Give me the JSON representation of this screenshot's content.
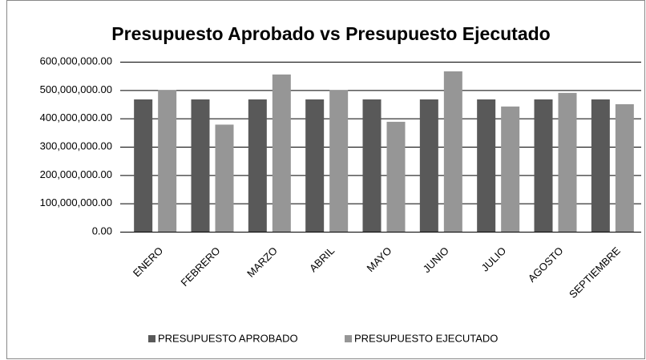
{
  "chart_data": {
    "type": "bar",
    "title": "Presupuesto Aprobado vs Presupuesto Ejecutado",
    "categories": [
      "ENERO",
      "FEBRERO",
      "MARZO",
      "ABRIL",
      "MAYO",
      "JUNIO",
      "JULIO",
      "AGOSTO",
      "SEPTIEMBRE"
    ],
    "series": [
      {
        "name": "PRESUPUESTO APROBADO",
        "color": "#595959",
        "values": [
          467000000,
          467000000,
          467000000,
          467000000,
          467000000,
          467000000,
          467000000,
          467000000,
          467000000
        ]
      },
      {
        "name": "PRESUPUESTO EJECUTADO",
        "color": "#969696",
        "values": [
          500000000,
          378000000,
          555000000,
          500000000,
          388000000,
          566000000,
          442000000,
          490000000,
          450000000
        ]
      }
    ],
    "ylim": [
      0,
      600000000
    ],
    "yticks": [
      {
        "value": 0,
        "label": "0.00"
      },
      {
        "value": 100000000,
        "label": "100,000,000.00"
      },
      {
        "value": 200000000,
        "label": "200,000,000.00"
      },
      {
        "value": 300000000,
        "label": "300,000,000.00"
      },
      {
        "value": 400000000,
        "label": "400,000,000.00"
      },
      {
        "value": 500000000,
        "label": "500,000,000.00"
      },
      {
        "value": 600000000,
        "label": "600,000,000.00"
      }
    ],
    "grid": true,
    "legend": "bottom"
  }
}
